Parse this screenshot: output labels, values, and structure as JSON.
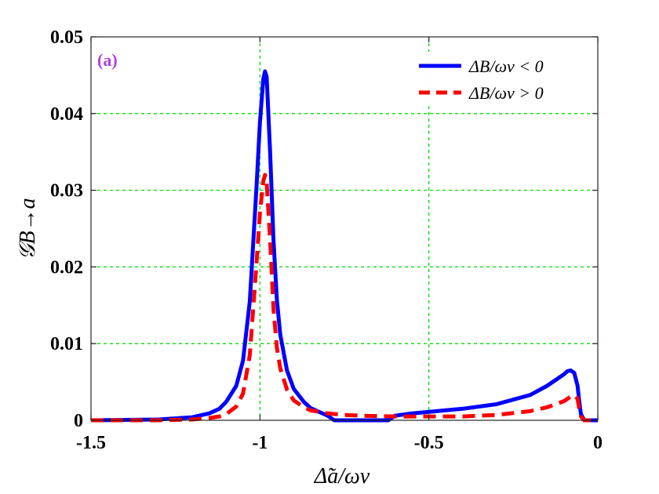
{
  "chart_data": {
    "type": "line",
    "panel_label": "(a)",
    "xlabel": "Δ̃a/ων",
    "ylabel": "𝒢B→a",
    "xlim": [
      -1.5,
      0
    ],
    "ylim": [
      0,
      0.05
    ],
    "xticks": [
      -1.5,
      -1,
      -0.5,
      0
    ],
    "xtick_labels": [
      "-1.5",
      "-1",
      "-0.5",
      "0"
    ],
    "yticks": [
      0,
      0.01,
      0.02,
      0.03,
      0.04,
      0.05
    ],
    "ytick_labels": [
      "0",
      "0.01",
      "0.02",
      "0.03",
      "0.04",
      "0.05"
    ],
    "grid": true,
    "legend_position": "top-right",
    "colors": {
      "panel_label": "#b040e0",
      "grid": "#00dd00",
      "series_1": "#0000ff",
      "series_2": "#ff0000"
    },
    "series": [
      {
        "name": "ΔB/ων < 0",
        "style": "solid",
        "x": [
          -1.5,
          -1.3,
          -1.2,
          -1.15,
          -1.12,
          -1.1,
          -1.07,
          -1.05,
          -1.03,
          -1.01,
          -1.0,
          -0.99,
          -0.985,
          -0.98,
          -0.97,
          -0.96,
          -0.95,
          -0.94,
          -0.92,
          -0.9,
          -0.87,
          -0.85,
          -0.8,
          -0.78,
          -0.7,
          -0.65,
          -0.62,
          -0.6,
          -0.55,
          -0.5,
          -0.4,
          -0.3,
          -0.2,
          -0.15,
          -0.1,
          -0.09,
          -0.08,
          -0.07,
          -0.06,
          -0.055,
          -0.05,
          -0.04,
          0
        ],
        "y": [
          0,
          0.0001,
          0.0004,
          0.0009,
          0.0015,
          0.0024,
          0.0045,
          0.0078,
          0.0155,
          0.0305,
          0.0388,
          0.0445,
          0.0455,
          0.0448,
          0.035,
          0.0235,
          0.0158,
          0.0112,
          0.0065,
          0.0041,
          0.0024,
          0.0016,
          0.0006,
          0,
          0,
          0,
          0,
          0.0006,
          0.0009,
          0.0011,
          0.0015,
          0.0021,
          0.0033,
          0.0045,
          0.006,
          0.0064,
          0.0065,
          0.0062,
          0.0045,
          0.0025,
          0.0008,
          0,
          0
        ]
      },
      {
        "name": "ΔB/ων > 0",
        "style": "dashed",
        "x": [
          -1.5,
          -1.3,
          -1.2,
          -1.15,
          -1.12,
          -1.1,
          -1.07,
          -1.05,
          -1.03,
          -1.01,
          -1.0,
          -0.99,
          -0.985,
          -0.98,
          -0.97,
          -0.96,
          -0.95,
          -0.94,
          -0.92,
          -0.9,
          -0.87,
          -0.85,
          -0.8,
          -0.75,
          -0.7,
          -0.6,
          -0.5,
          -0.4,
          -0.3,
          -0.2,
          -0.15,
          -0.1,
          -0.08,
          -0.07,
          -0.06,
          -0.055,
          -0.05,
          -0.04,
          0
        ],
        "y": [
          0,
          0,
          0.0001,
          0.0003,
          0.0005,
          0.0008,
          0.0018,
          0.0035,
          0.0085,
          0.0205,
          0.027,
          0.0312,
          0.032,
          0.031,
          0.0235,
          0.0145,
          0.0095,
          0.0068,
          0.004,
          0.0026,
          0.0017,
          0.0013,
          0.0009,
          0.0007,
          0.0006,
          0.0005,
          0.0005,
          0.0005,
          0.0007,
          0.0012,
          0.0017,
          0.0025,
          0.0031,
          0.0033,
          0.0028,
          0.0015,
          0.0005,
          0,
          0
        ]
      }
    ]
  }
}
